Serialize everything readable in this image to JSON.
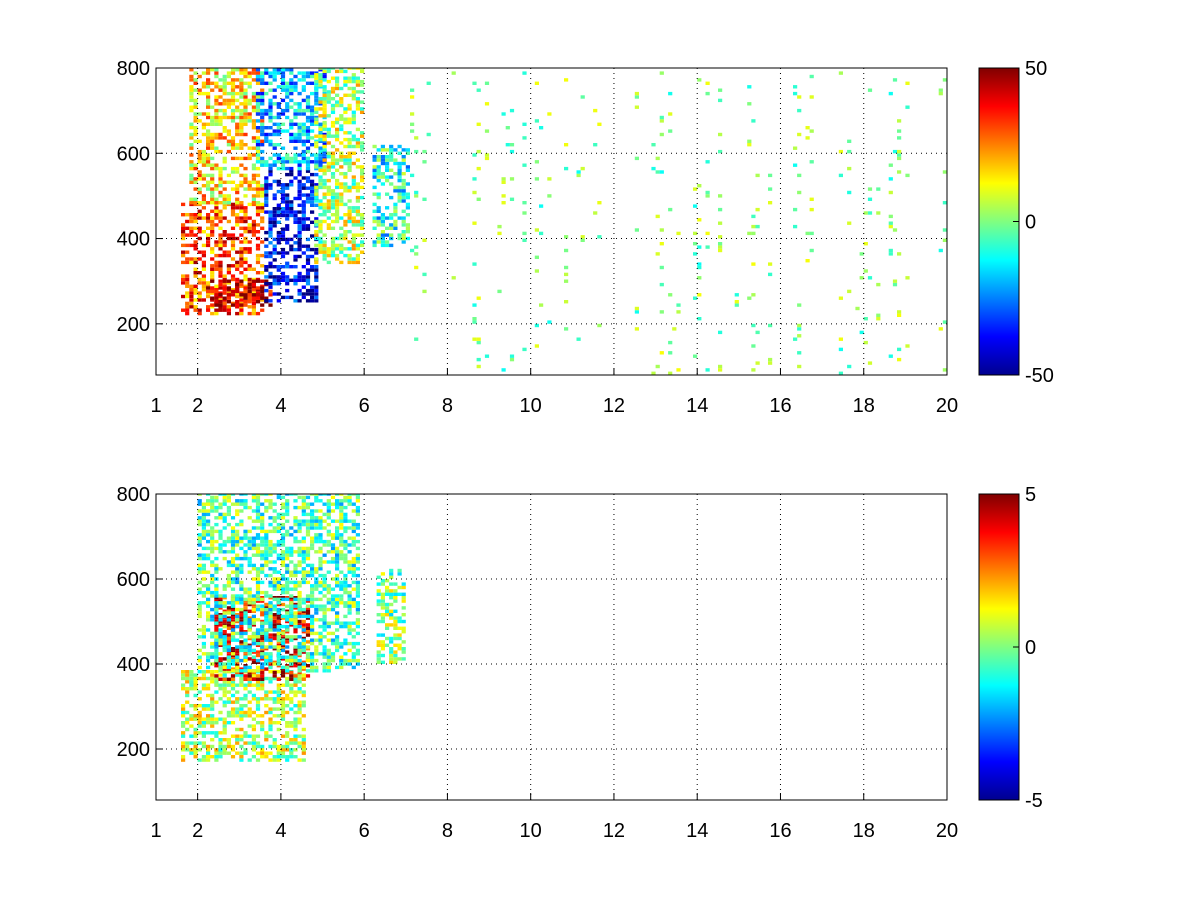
{
  "chart_data": [
    {
      "type": "heatmap",
      "title": "",
      "xlabel": "",
      "ylabel": "",
      "xlim": [
        1,
        20
      ],
      "ylim": [
        80,
        800
      ],
      "x_ticks": [
        "1",
        "2",
        "4",
        "6",
        "8",
        "10",
        "12",
        "14",
        "16",
        "18",
        "20"
      ],
      "y_ticks": [
        "200",
        "400",
        "600",
        "800"
      ],
      "grid": true,
      "colormap": "jet",
      "colorbar": {
        "min": -50,
        "max": 50,
        "ticks": [
          "50",
          "0",
          "-50"
        ]
      },
      "regions": [
        {
          "desc": "positive band",
          "x": [
            1.6,
            3.6
          ],
          "y": [
            220,
            480
          ],
          "value": 30
        },
        {
          "desc": "peak ridge",
          "x": [
            2.2,
            3.8
          ],
          "y": [
            240,
            300
          ],
          "value": 45
        },
        {
          "desc": "upper positive",
          "x": [
            1.8,
            3.6
          ],
          "y": [
            480,
            800
          ],
          "value": 15
        },
        {
          "desc": "negative band",
          "x": [
            3.6,
            4.8
          ],
          "y": [
            250,
            560
          ],
          "value": -40
        },
        {
          "desc": "upper negative",
          "x": [
            3.4,
            5.0
          ],
          "y": [
            560,
            800
          ],
          "value": -20
        },
        {
          "desc": "outer mixed",
          "x": [
            4.8,
            5.9
          ],
          "y": [
            340,
            800
          ],
          "value": 5
        },
        {
          "desc": "cluster near 6.5",
          "x": [
            6.2,
            7.0
          ],
          "y": [
            380,
            620
          ],
          "value": -10
        },
        {
          "desc": "sparse scatter",
          "x": [
            7.0,
            20.0
          ],
          "y": [
            80,
            800
          ],
          "value": 0
        }
      ]
    },
    {
      "type": "heatmap",
      "title": "",
      "xlabel": "",
      "ylabel": "",
      "xlim": [
        1,
        20
      ],
      "ylim": [
        80,
        800
      ],
      "x_ticks": [
        "1",
        "2",
        "4",
        "6",
        "8",
        "10",
        "12",
        "14",
        "16",
        "18",
        "20"
      ],
      "y_ticks": [
        "200",
        "400",
        "600",
        "800"
      ],
      "grid": true,
      "colormap": "jet",
      "colorbar": {
        "min": -5,
        "max": 5,
        "ticks": [
          "5",
          "0",
          "-5"
        ]
      },
      "regions": [
        {
          "desc": "lower body",
          "x": [
            1.6,
            4.6
          ],
          "y": [
            170,
            380
          ],
          "value": 0.5
        },
        {
          "desc": "strong positive patch",
          "x": [
            2.4,
            4.6
          ],
          "y": [
            360,
            560
          ],
          "value": 4
        },
        {
          "desc": "upper mixed",
          "x": [
            2.0,
            5.8
          ],
          "y": [
            380,
            800
          ],
          "value": -0.5
        },
        {
          "desc": "small cluster",
          "x": [
            6.3,
            6.9
          ],
          "y": [
            400,
            620
          ],
          "value": 0
        }
      ]
    }
  ]
}
